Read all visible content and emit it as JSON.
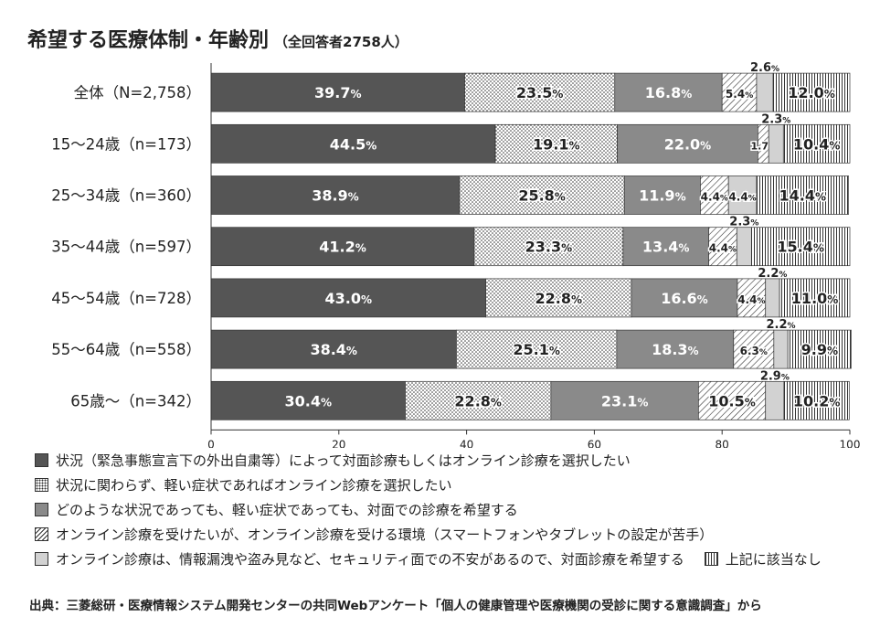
{
  "title": "希望する医療体制・年齢別",
  "subtitle": "（全回答者2758人）",
  "chart_data": {
    "type": "bar",
    "orientation": "horizontal",
    "stacked": true,
    "categories": [
      "全体（N=2,758）",
      "15～24歳（n=173）",
      "25～34歳（n=360）",
      "35～44歳（n=597）",
      "45～54歳（n=728）",
      "55～64歳（n=558）",
      "65歳～（n=342）"
    ],
    "series": [
      {
        "name": "状況（緊急事態宣言下の外出自粛等）によって対面診療もしくはオンライン診療を選択したい",
        "values": [
          39.7,
          44.5,
          38.9,
          41.2,
          43.0,
          38.4,
          30.4
        ],
        "color": "#555555",
        "pattern": "solid"
      },
      {
        "name": "状況に関わらず、軽い症状であればオンライン診療を選択したい",
        "values": [
          23.5,
          19.1,
          25.8,
          23.3,
          22.8,
          25.1,
          22.8
        ],
        "color": "#ffffff",
        "pattern": "dots"
      },
      {
        "name": "どのような状況であっても、軽い症状であっても、対面での診療を希望する",
        "values": [
          16.8,
          22.0,
          11.9,
          13.4,
          16.6,
          18.3,
          23.1
        ],
        "color": "#8a8a8a",
        "pattern": "solid"
      },
      {
        "name": "オンライン診療を受けたいが、オンライン診療を受ける環境（スマートフォンやタブレットの設定が苦手）",
        "values": [
          5.4,
          1.7,
          4.4,
          4.4,
          4.4,
          6.3,
          10.5
        ],
        "color": "#ffffff",
        "pattern": "diagonal"
      },
      {
        "name": "オンライン診療は、情報漏洩や盗み見など、セキュリティ面での不安があるので、対面診療を希望する",
        "values": [
          2.6,
          2.3,
          4.4,
          2.3,
          2.2,
          2.2,
          2.9
        ],
        "color": "#d2d2d2",
        "pattern": "solid"
      },
      {
        "name": "上記に該当なし",
        "values": [
          12.0,
          10.4,
          14.4,
          15.4,
          11.0,
          9.9,
          10.2
        ],
        "color": "#ffffff",
        "pattern": "vertical"
      }
    ],
    "value_labels": [
      [
        "39.7",
        "23.5",
        "16.8",
        "5.4",
        "2.6",
        "12.0"
      ],
      [
        "44.5",
        "19.1",
        "22.0",
        "1.7",
        "2.3",
        "10.4"
      ],
      [
        "38.9",
        "25.8",
        "11.9",
        "4.4",
        "4.4",
        "14.4"
      ],
      [
        "41.2",
        "23.3",
        "13.4",
        "4.4",
        "2.3",
        "15.4"
      ],
      [
        "43.0",
        "22.8",
        "16.6",
        "4.4",
        "2.2",
        "11.0"
      ],
      [
        "38.4",
        "25.1",
        "18.3",
        "6.3",
        "2.2",
        "9.9"
      ],
      [
        "30.4",
        "22.8",
        "23.1",
        "10.5",
        "2.9",
        "10.2"
      ]
    ],
    "unit_suffix": "%",
    "xlim": [
      0,
      100
    ],
    "xticks": [
      0,
      20,
      40,
      60,
      80,
      100
    ],
    "xlabel": "",
    "ylabel": "",
    "grid": false,
    "legend_position": "bottom"
  },
  "legend_labels": [
    "状況（緊急事態宣言下の外出自粛等）によって対面診療もしくはオンライン診療を選択したい",
    "状況に関わらず、軽い症状であればオンライン診療を選択したい",
    "どのような状況であっても、軽い症状であっても、対面での診療を希望する",
    "オンライン診療を受けたいが、オンライン診療を受ける環境（スマートフォンやタブレットの設定が苦手）",
    "オンライン診療は、情報漏洩や盗み見など、セキュリティ面での不安があるので、対面診療を希望する",
    "上記に該当なし"
  ],
  "source": "出典：三菱総研・医療情報システム開発センターの共同Webアンケート「個人の健康管理や医療機関の受診に関する意識調査」から"
}
